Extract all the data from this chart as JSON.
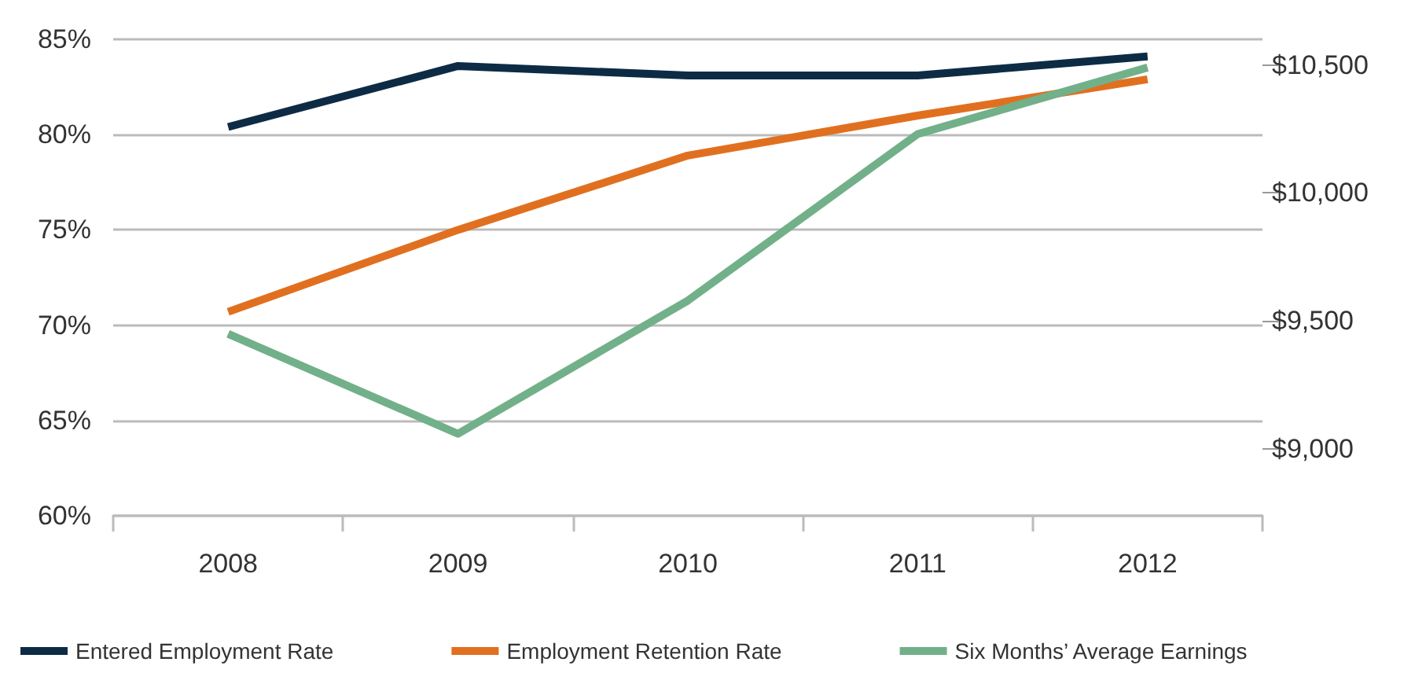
{
  "chart_data": {
    "type": "line",
    "categories": [
      "2008",
      "2009",
      "2010",
      "2011",
      "2012"
    ],
    "series": [
      {
        "name": "Entered Employment Rate",
        "color": "#0d2b45",
        "values": [
          80.4,
          83.6,
          83.1,
          83.1,
          84.1
        ]
      },
      {
        "name": "Employment Retention Rate",
        "color": "#e07020",
        "values": [
          70.7,
          75.0,
          78.9,
          81.0,
          82.9
        ]
      },
      {
        "name": "Six Months’ Average Earnings",
        "color": "#72b08a",
        "axis": "y2",
        "values": [
          9450,
          9060,
          9580,
          10230,
          10490
        ]
      }
    ],
    "ylim": [
      60,
      85
    ],
    "yticks": [
      {
        "value": 60,
        "label": "60%"
      },
      {
        "value": 65,
        "label": "65%"
      },
      {
        "value": 70,
        "label": "70%"
      },
      {
        "value": 75,
        "label": "75%"
      },
      {
        "value": 80,
        "label": "80%"
      },
      {
        "value": 85,
        "label": "85%"
      }
    ],
    "y2lim": [
      8740,
      10600
    ],
    "y2ticks": [
      {
        "value": 9000,
        "label": "$9,000"
      },
      {
        "value": 9500,
        "label": "$9,500"
      },
      {
        "value": 10000,
        "label": "$10,000"
      },
      {
        "value": 10500,
        "label": "$10,500"
      }
    ],
    "grid": "y",
    "legend": "bottom",
    "marker": "none",
    "line_style": "solid"
  }
}
